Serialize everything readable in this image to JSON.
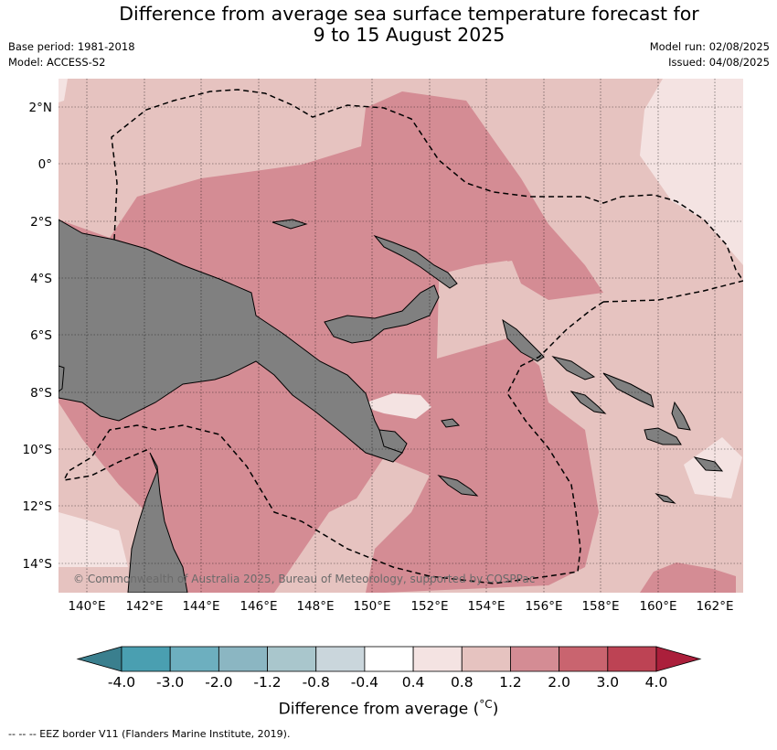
{
  "title": {
    "line1": "Difference from average sea surface temperature forecast for",
    "line2": "9 to 15 August 2025"
  },
  "meta": {
    "base_period": "Base period: 1981-2018",
    "model": "Model: ACCESS-S2",
    "model_run": "Model run: 02/08/2025",
    "issued": "Issued: 04/08/2025"
  },
  "map": {
    "lon_labels": [
      "140°E",
      "142°E",
      "144°E",
      "146°E",
      "148°E",
      "150°E",
      "152°E",
      "154°E",
      "156°E",
      "158°E",
      "160°E",
      "162°E"
    ],
    "lat_labels": [
      "2°N",
      "0°",
      "2°S",
      "4°S",
      "6°S",
      "8°S",
      "10°S",
      "12°S",
      "14°S"
    ],
    "copyright": "© Commonwealth of Australia 2025, Bureau of Meteorology, supported by COSPPac",
    "land_color": "#808080",
    "eez_style": "dashed black line"
  },
  "colorbar": {
    "labels": [
      "-4.0",
      "-3.0",
      "-2.0",
      "-1.2",
      "-0.8",
      "-0.4",
      "0.4",
      "0.8",
      "1.2",
      "2.0",
      "3.0",
      "4.0"
    ],
    "colors": [
      "#3a7f8e",
      "#4a9fb1",
      "#6dafbf",
      "#8bb6c2",
      "#a9c6cc",
      "#cad6dc",
      "#ffffff",
      "#f4e3e2",
      "#e6c3c0",
      "#d48c94",
      "#c9646f",
      "#bd4354",
      "#ab1f3b"
    ],
    "title": "Difference from average (",
    "title_unit": "°C",
    "title_close": ")"
  },
  "footer": "--  --  -- EEZ border V11 (Flanders Marine Institute, 2019)."
}
